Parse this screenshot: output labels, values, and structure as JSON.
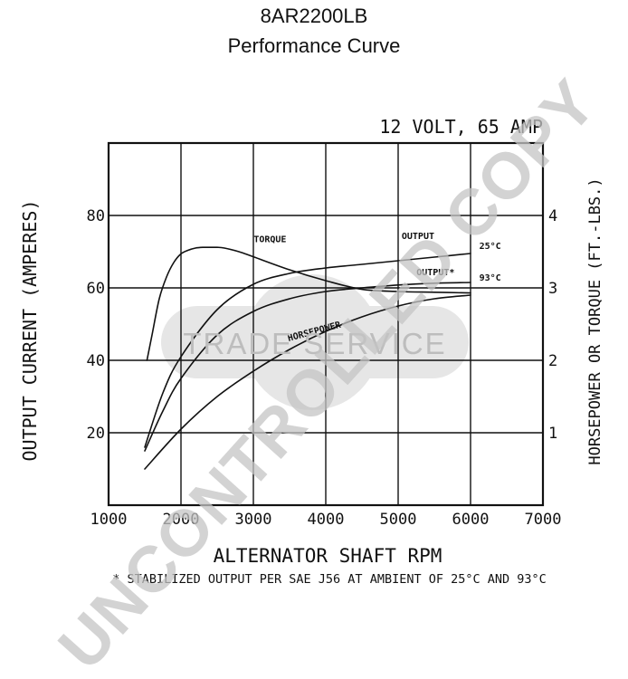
{
  "header": {
    "model": "8AR2200LB",
    "subtitle": "Performance Curve"
  },
  "watermarks": {
    "diagonal": "UNCONTROLLED COPY",
    "center": "TRADE SERVICE"
  },
  "colors": {
    "ink": "#111111",
    "watermark_text": "#b9b9b9",
    "watermark_badge": "#e6e6e6"
  },
  "chart_data": {
    "type": "line",
    "title": "12 VOLT, 65 AMP",
    "xlabel": "ALTERNATOR SHAFT RPM",
    "ylabel_left": "OUTPUT CURRENT (AMPERES)",
    "ylabel_right": "HORSEPOWER OR TORQUE (FT.-LBS.)",
    "footnote": "* STABILIZED OUTPUT PER SAE J56 AT AMBIENT OF 25°C AND 93°C",
    "xlim": [
      1000,
      7000
    ],
    "xticks": [
      1000,
      2000,
      3000,
      4000,
      5000,
      6000,
      7000
    ],
    "ylim_left": [
      0,
      100
    ],
    "yticks_left": [
      20,
      40,
      60,
      80
    ],
    "ylim_right": [
      0,
      5
    ],
    "yticks_right": [
      1,
      2,
      3,
      4
    ],
    "grid": true,
    "series": [
      {
        "name": "OUTPUT",
        "end_label": "25°C",
        "axis": "left",
        "x": [
          1500,
          1750,
          2000,
          2500,
          3000,
          3500,
          4000,
          4500,
          5000,
          5500,
          6000
        ],
        "y": [
          16,
          31,
          41,
          54,
          61,
          64,
          65.5,
          66.5,
          67.5,
          68.5,
          69.5
        ]
      },
      {
        "name": "OUTPUT*",
        "end_label": "93°C",
        "axis": "left",
        "x": [
          1500,
          1750,
          2000,
          2500,
          3000,
          3500,
          4000,
          4500,
          5000,
          5500,
          6000
        ],
        "y": [
          15,
          26,
          35,
          47,
          53.5,
          57,
          59,
          60,
          60.8,
          61.3,
          61.5
        ]
      },
      {
        "name": "TORQUE",
        "axis": "right",
        "x": [
          1530,
          1600,
          1700,
          1800,
          1900,
          2000,
          2100,
          2200,
          2300,
          2400,
          2500,
          2600,
          2800,
          3000,
          3500,
          4000,
          4500,
          5000,
          5500,
          6000
        ],
        "y": [
          2.0,
          2.35,
          2.85,
          3.15,
          3.35,
          3.47,
          3.52,
          3.55,
          3.56,
          3.56,
          3.56,
          3.55,
          3.5,
          3.43,
          3.25,
          3.1,
          2.98,
          2.95,
          2.94,
          2.93
        ]
      },
      {
        "name": "HORSEPOWER",
        "axis": "right",
        "x": [
          1500,
          2000,
          2500,
          3000,
          3500,
          4000,
          4500,
          5000,
          5500,
          6000
        ],
        "y": [
          0.5,
          1.05,
          1.5,
          1.85,
          2.15,
          2.4,
          2.6,
          2.75,
          2.85,
          2.9
        ]
      }
    ]
  }
}
